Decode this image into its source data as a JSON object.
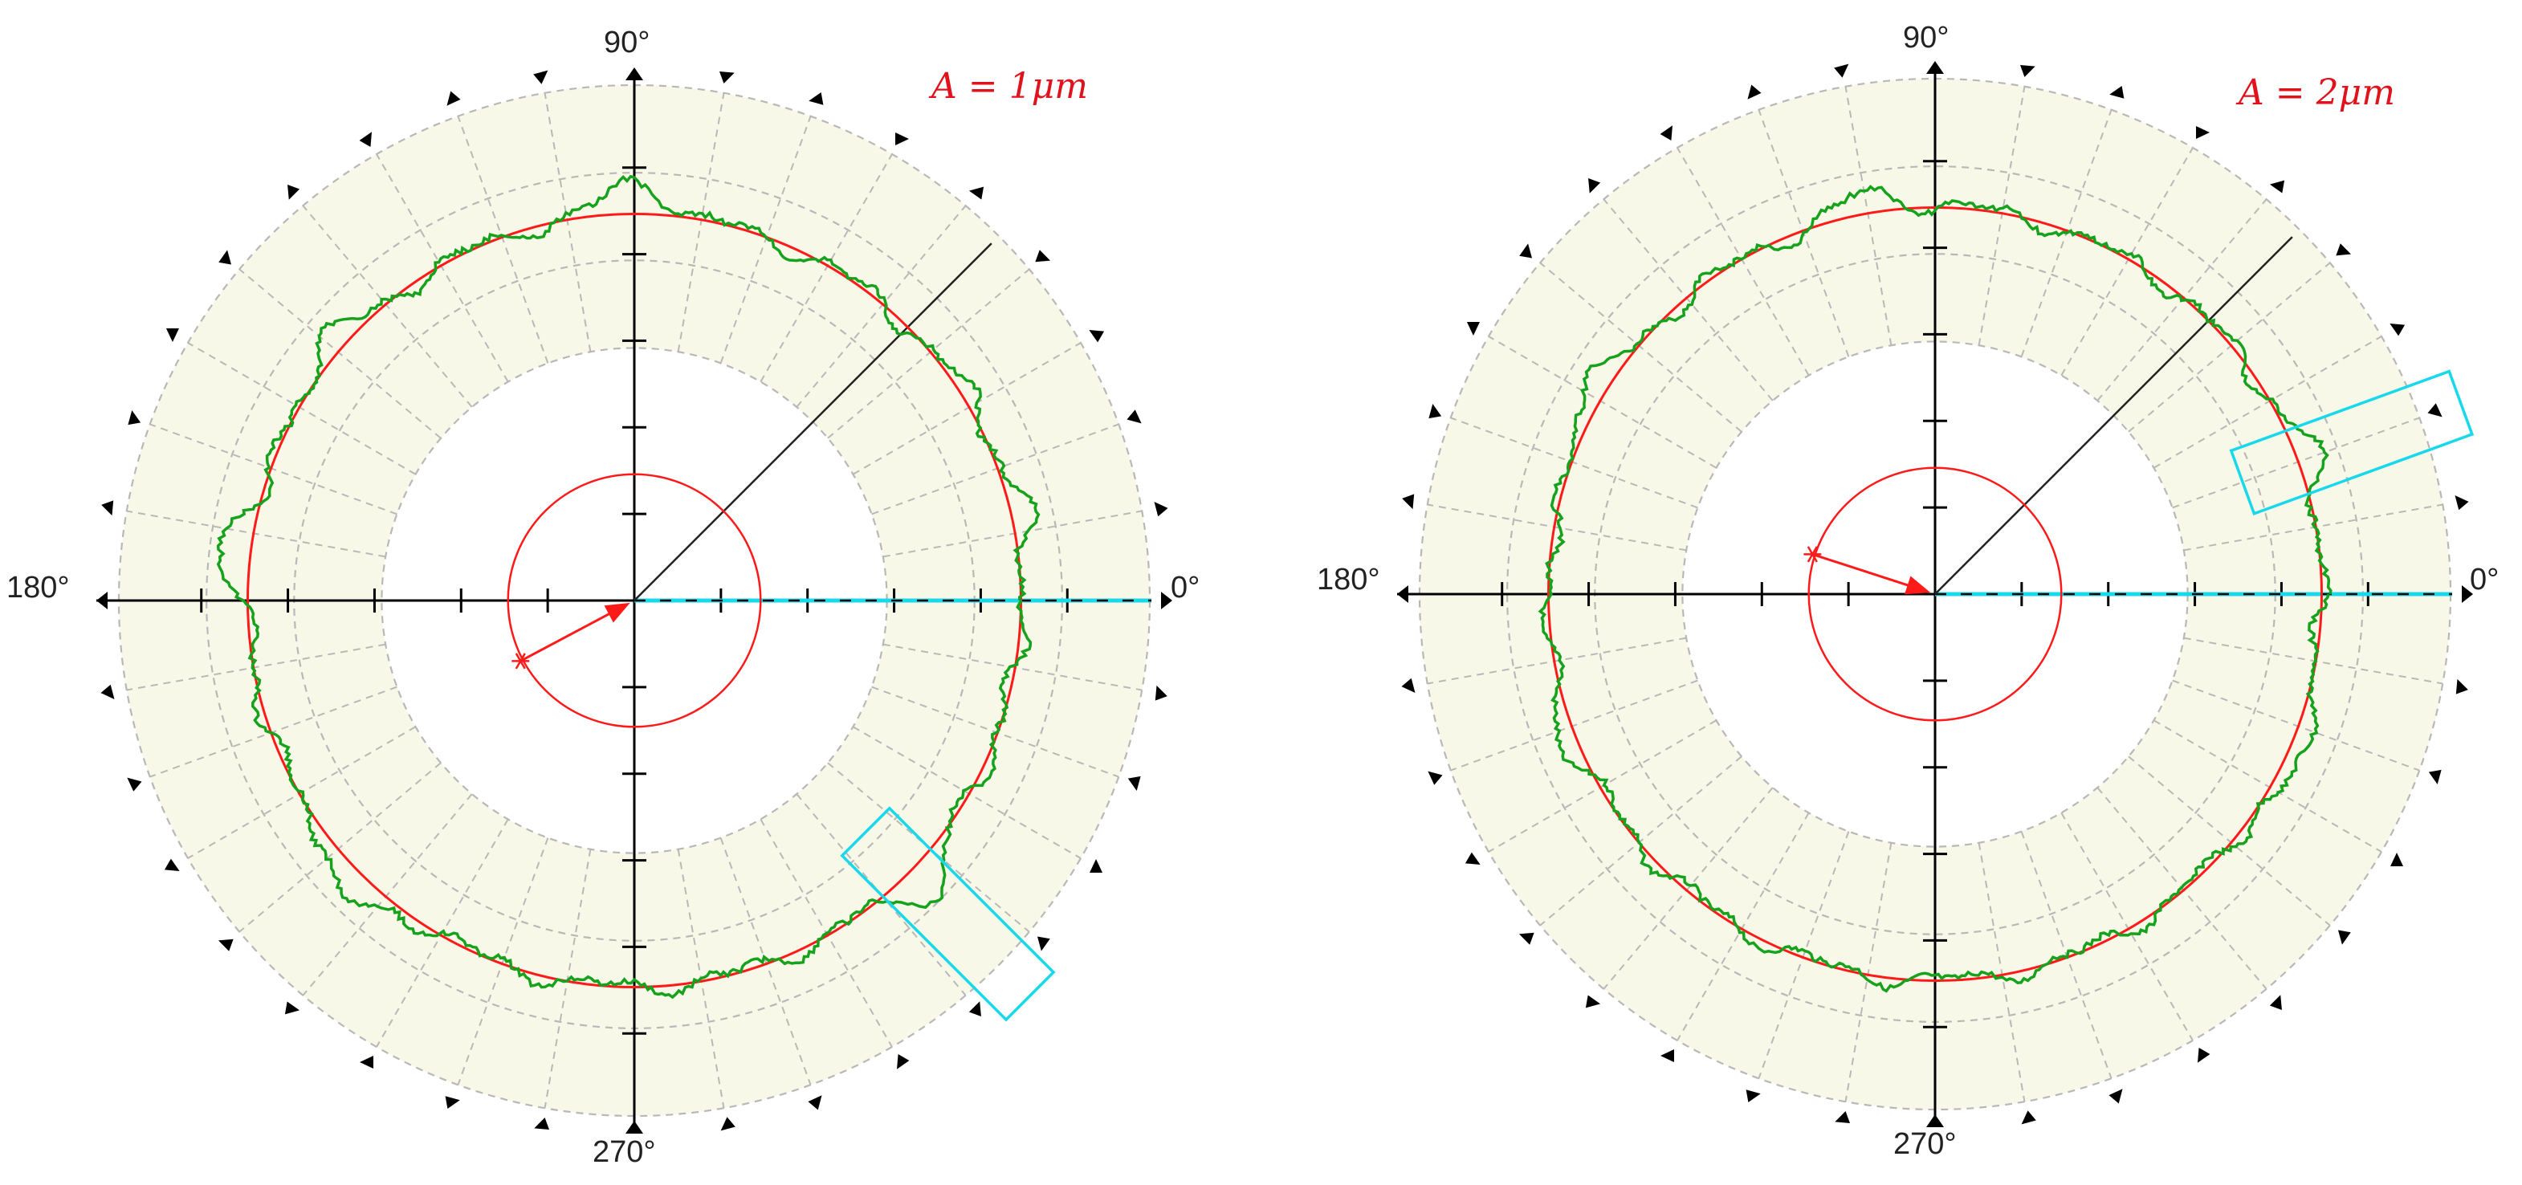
{
  "chart_data": [
    {
      "type": "polar",
      "annotation": "A = 1μm",
      "angle_labels": {
        "right": "0°",
        "top": "90°",
        "left": "180°",
        "bottom": "270°"
      },
      "colors": {
        "band": "#f8f8e8",
        "profile": "#17a21d",
        "reference_circle": "#ff1a1a",
        "axes": "#000000",
        "highlight": "#18d8ec"
      },
      "profile_radius_mean": 0.75,
      "reference_circle_radius": 0.75,
      "inner_circle_radius": 0.245,
      "diagonal_line_angle_deg": 45,
      "center_offset": {
        "angle_deg": 208,
        "magnitude": 0.25
      },
      "highlight_window_angle_deg": -45,
      "profile_features": [
        {
          "angle_deg": 12,
          "deviation": 0.035
        },
        {
          "angle_deg": 30,
          "deviation": 0.02
        },
        {
          "angle_deg": 90,
          "deviation": 0.06
        },
        {
          "angle_deg": 140,
          "deviation": 0.04
        },
        {
          "angle_deg": 172,
          "deviation": 0.06
        },
        {
          "angle_deg": 225,
          "deviation": 0.06
        },
        {
          "angle_deg": 316,
          "deviation": 0.06
        }
      ]
    },
    {
      "type": "polar",
      "annotation": "A = 2μm",
      "angle_labels": {
        "right": "0°",
        "top": "90°",
        "left": "180°",
        "bottom": "270°"
      },
      "colors": {
        "band": "#f8f8e8",
        "profile": "#17a21d",
        "reference_circle": "#ff1a1a",
        "axes": "#000000",
        "highlight": "#18d8ec"
      },
      "profile_radius_mean": 0.75,
      "reference_circle_radius": 0.75,
      "inner_circle_radius": 0.245,
      "diagonal_line_angle_deg": 45,
      "center_offset": {
        "angle_deg": 162,
        "magnitude": 0.25
      },
      "highlight_window_angle_deg": 20,
      "profile_features": [
        {
          "angle_deg": 20,
          "deviation": 0.04
        },
        {
          "angle_deg": 100,
          "deviation": 0.04
        },
        {
          "angle_deg": 150,
          "deviation": 0.05
        },
        {
          "angle_deg": 200,
          "deviation": 0.03
        },
        {
          "angle_deg": 335,
          "deviation": 0.04
        }
      ]
    }
  ]
}
